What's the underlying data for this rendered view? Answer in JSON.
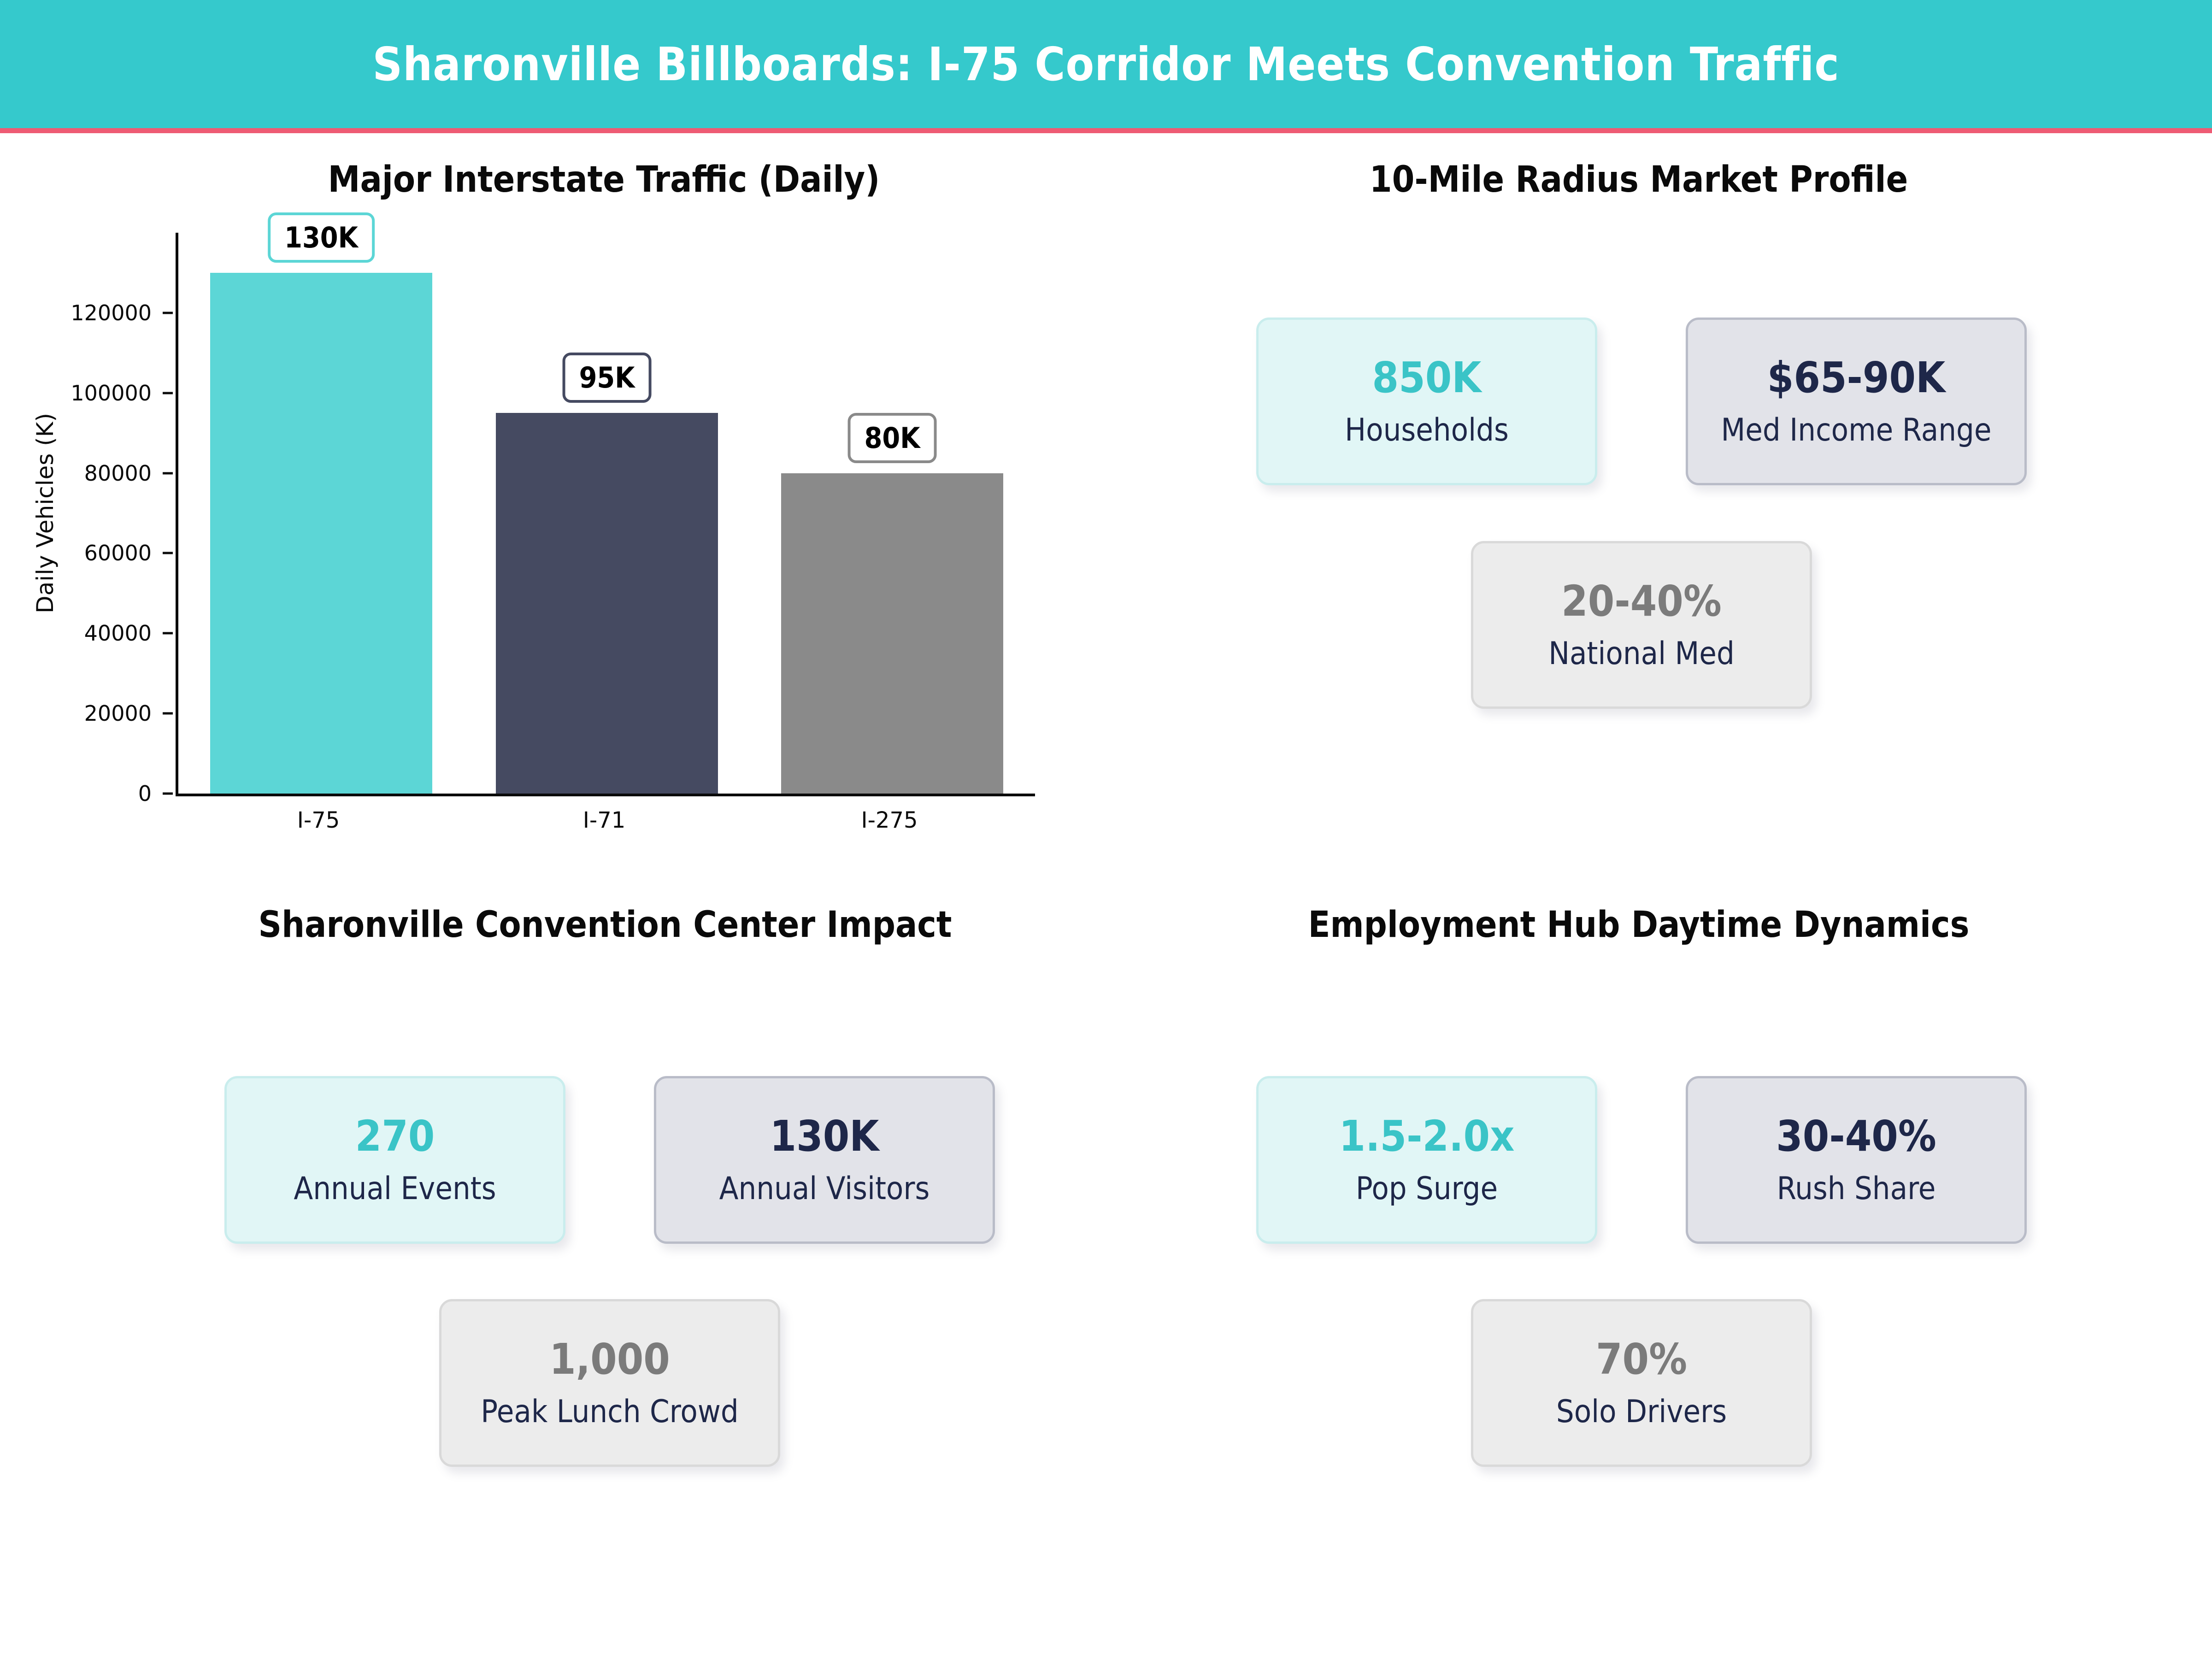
{
  "header": {
    "title": "Sharonville Billboards: I-75 Corridor Meets Convention Traffic",
    "bg_color": "#35c9cc",
    "accent_color": "#ee5b74"
  },
  "chart_data": {
    "type": "bar",
    "title": "Major Interstate Traffic (Daily)",
    "categories": [
      "I-75",
      "I-71",
      "I-275"
    ],
    "values": [
      130000,
      95000,
      80000
    ],
    "data_labels": [
      "130K",
      "95K",
      "80K"
    ],
    "bar_colors": [
      "#5cd6d6",
      "#454a61",
      "#8a8a8a"
    ],
    "xlabel": "",
    "ylabel": "Daily Vehicles (K)",
    "yticks": [
      0,
      20000,
      40000,
      60000,
      80000,
      100000,
      120000
    ],
    "ylim": [
      0,
      140000
    ],
    "grid": false,
    "legend_position": "none"
  },
  "sections": {
    "market": {
      "title": "10-Mile Radius Market Profile",
      "cards": [
        {
          "value": "850K",
          "label": "Households",
          "style": "mint"
        },
        {
          "value": "$65-90K",
          "label": "Med Income Range",
          "style": "slate"
        },
        {
          "value": "20-40%",
          "label": "National Med",
          "style": "gray"
        }
      ]
    },
    "convention": {
      "title": "Sharonville Convention Center Impact",
      "cards": [
        {
          "value": "270",
          "label": "Annual Events",
          "style": "mint"
        },
        {
          "value": "130K",
          "label": "Annual Visitors",
          "style": "slate"
        },
        {
          "value": "1,000",
          "label": "Peak Lunch Crowd",
          "style": "gray"
        }
      ]
    },
    "employment": {
      "title": "Employment Hub Daytime Dynamics",
      "cards": [
        {
          "value": "1.5-2.0x",
          "label": "Pop Surge",
          "style": "mint"
        },
        {
          "value": "30-40%",
          "label": "Rush Share",
          "style": "slate"
        },
        {
          "value": "70%",
          "label": "Solo Drivers",
          "style": "gray"
        }
      ]
    }
  },
  "value_colors": {
    "teal": "#3ac4c7",
    "navy": "#1e2749",
    "gray": "#7b7b7b"
  }
}
